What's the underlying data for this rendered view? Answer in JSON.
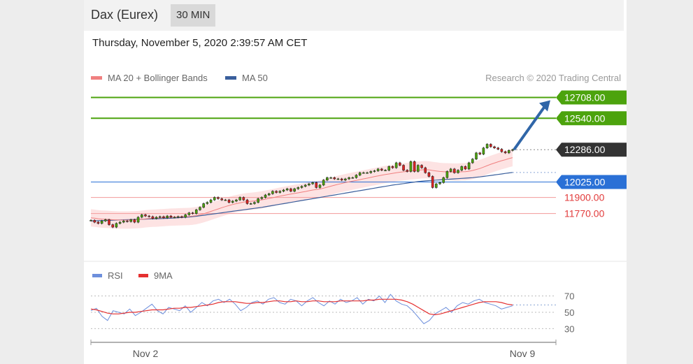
{
  "header": {
    "instrument": "Dax (Eurex)",
    "timeframe": "30 MIN"
  },
  "timestamp": "Thursday, November 5, 2020 2:39:57 AM CET",
  "legend": {
    "ma20": "MA 20 + Bollinger Bands",
    "ma50": "MA 50",
    "credit": "Research © 2020 Trading Central"
  },
  "rsi_legend": {
    "rsi": "RSI",
    "ma9": "9MA"
  },
  "colors": {
    "resistance": "#4ca30d",
    "pivot": "#2a70d6",
    "support": "#e23b3b",
    "current": "#333333",
    "ma20": "#f08080",
    "ma50": "#3a5f9c",
    "bollinger": "#fde0e0",
    "arrow": "#3066a8",
    "rsi": "#6d8fdc",
    "rsi_ma": "#e53030"
  },
  "chart_data": [
    {
      "type": "candlestick",
      "x_range": [
        "Oct 30",
        "Nov 9"
      ],
      "x_ticks": [
        "Nov 2",
        "Nov 9"
      ],
      "levels": [
        {
          "value": 12708,
          "label": "12708.00",
          "kind": "resistance"
        },
        {
          "value": 12540,
          "label": "12540.00",
          "kind": "resistance"
        },
        {
          "value": 12286,
          "label": "12286.00",
          "kind": "current"
        },
        {
          "value": 12025,
          "label": "12025.00",
          "kind": "pivot"
        },
        {
          "value": 11900,
          "label": "11900.00",
          "kind": "support"
        },
        {
          "value": 11770,
          "label": "11770.00",
          "kind": "support"
        }
      ],
      "target_arrow": {
        "from": 12286,
        "to": 12708
      },
      "ylim": [
        11525,
        12790
      ],
      "close": [
        11715,
        11700,
        11690,
        11710,
        11720,
        11680,
        11660,
        11690,
        11700,
        11710,
        11705,
        11720,
        11700,
        11740,
        11760,
        11750,
        11745,
        11730,
        11740,
        11745,
        11735,
        11750,
        11740,
        11740,
        11745,
        11740,
        11760,
        11775,
        11770,
        11800,
        11820,
        11850,
        11860,
        11880,
        11900,
        11890,
        11880,
        11880,
        11860,
        11870,
        11880,
        11900,
        11880,
        11850,
        11850,
        11860,
        11890,
        11900,
        11920,
        11930,
        11950,
        11940,
        11950,
        11960,
        11970,
        11950,
        11970,
        11980,
        11990,
        12000,
        12010,
        12020,
        11980,
        12000,
        12040,
        12060,
        12060,
        12050,
        12050,
        12040,
        12050,
        12060,
        12060,
        12080,
        12100,
        12100,
        12100,
        12110,
        12115,
        12130,
        12120,
        12120,
        12150,
        12140,
        12180,
        12160,
        12120,
        12110,
        12190,
        12110,
        12160,
        12140,
        12100,
        12070,
        11980,
        12010,
        12020,
        12060,
        12110,
        12130,
        12100,
        12120,
        12150,
        12130,
        12180,
        12210,
        12260,
        12250,
        12300,
        12330,
        12310,
        12300,
        12290,
        12270,
        12260,
        12280,
        12286
      ],
      "ma20": [
        11735,
        11732,
        11728,
        11725,
        11724,
        11722,
        11720,
        11718,
        11717,
        11717,
        11717,
        11718,
        11719,
        11721,
        11724,
        11727,
        11730,
        11732,
        11733,
        11735,
        11737,
        11739,
        11741,
        11742,
        11743,
        11744,
        11745,
        11746,
        11749,
        11753,
        11760,
        11768,
        11777,
        11787,
        11797,
        11807,
        11817,
        11826,
        11835,
        11843,
        11850,
        11856,
        11862,
        11866,
        11869,
        11872,
        11876,
        11880,
        11886,
        11892,
        11898,
        11904,
        11910,
        11916,
        11922,
        11927,
        11932,
        11937,
        11943,
        11948,
        11954,
        11960,
        11964,
        11968,
        11975,
        11983,
        11991,
        11999,
        12006,
        12013,
        12020,
        12026,
        12032,
        12038,
        12044,
        12050,
        12056,
        12062,
        12068,
        12074,
        12080,
        12085,
        12090,
        12095,
        12100,
        12104,
        12107,
        12110,
        12115,
        12117,
        12120,
        12123,
        12124,
        12123,
        12118,
        12114,
        12110,
        12108,
        12107,
        12106,
        12105,
        12105,
        12107,
        12108,
        12112,
        12118,
        12126,
        12134,
        12145,
        12157,
        12168,
        12178,
        12188,
        12197,
        12205,
        12214,
        12222
      ],
      "ma50": [
        11710,
        11711,
        11712,
        11713,
        11714,
        11715,
        11716,
        11717,
        11718,
        11719,
        11720,
        11721,
        11722,
        11723,
        11724,
        11725,
        11726,
        11727,
        11728,
        11729,
        11730,
        11731,
        11732,
        11734,
        11736,
        11738,
        11740,
        11742,
        11745,
        11748,
        11752,
        11756,
        11760,
        11764,
        11768,
        11772,
        11776,
        11780,
        11784,
        11788,
        11792,
        11796,
        11800,
        11804,
        11808,
        11812,
        11816,
        11820,
        11825,
        11830,
        11835,
        11840,
        11845,
        11850,
        11855,
        11860,
        11865,
        11870,
        11875,
        11880,
        11885,
        11890,
        11895,
        11900,
        11905,
        11910,
        11915,
        11920,
        11925,
        11930,
        11935,
        11940,
        11945,
        11950,
        11955,
        11960,
        11965,
        11970,
        11975,
        11980,
        11985,
        11990,
        11995,
        12000,
        12004,
        12008,
        12012,
        12016,
        12020,
        12024,
        12028,
        12031,
        12034,
        12036,
        12038,
        12040,
        12042,
        12044,
        12046,
        12048,
        12050,
        12052,
        12054,
        12056,
        12058,
        12060,
        12063,
        12066,
        12070,
        12074,
        12078,
        12082,
        12086,
        12090,
        12094,
        12098,
        12102
      ],
      "bb_width": 70
    },
    {
      "type": "line",
      "title": "RSI",
      "y_ticks": [
        70,
        50,
        30
      ],
      "ylim": [
        20,
        80
      ],
      "series": [
        {
          "name": "RSI",
          "values": [
            52,
            55,
            45,
            40,
            52,
            50,
            48,
            54,
            46,
            50,
            55,
            60,
            52,
            48,
            56,
            54,
            52,
            58,
            50,
            56,
            62,
            58,
            64,
            66,
            62,
            66,
            60,
            52,
            56,
            62,
            64,
            60,
            66,
            68,
            62,
            60,
            66,
            64,
            58,
            64,
            68,
            62,
            58,
            64,
            60,
            66,
            62,
            64,
            68,
            60,
            66,
            64,
            70,
            62,
            72,
            64,
            60,
            58,
            52,
            44,
            36,
            40,
            48,
            52,
            56,
            50,
            58,
            62,
            60,
            64,
            66,
            62,
            60,
            58,
            54,
            56,
            58
          ]
        },
        {
          "name": "9MA",
          "values": [
            54,
            53,
            51,
            49,
            48,
            48,
            49,
            50,
            50,
            51,
            52,
            53,
            53,
            53,
            54,
            55,
            55,
            56,
            56,
            57,
            58,
            59,
            60,
            62,
            63,
            63,
            63,
            62,
            61,
            61,
            62,
            62,
            63,
            64,
            64,
            63,
            63,
            64,
            63,
            63,
            64,
            64,
            63,
            63,
            63,
            64,
            64,
            64,
            64,
            64,
            65,
            65,
            66,
            66,
            66,
            66,
            65,
            63,
            60,
            56,
            52,
            48,
            47,
            48,
            50,
            52,
            54,
            56,
            58,
            60,
            62,
            63,
            63,
            63,
            62,
            60,
            59
          ]
        }
      ]
    }
  ]
}
